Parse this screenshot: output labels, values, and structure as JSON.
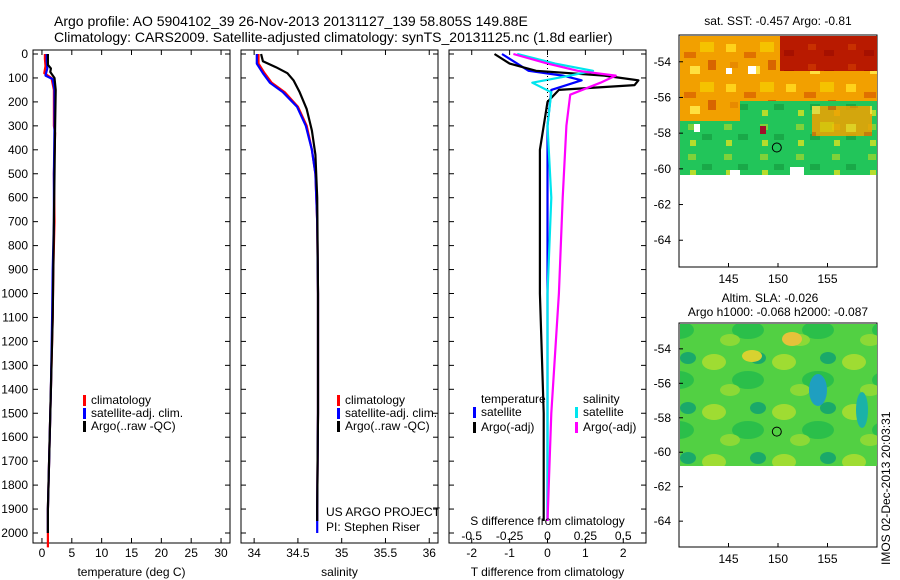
{
  "header": {
    "line1": "Argo profile: AO 5904102_39 26-Nov-2013 20131127_139 58.805S 149.88E",
    "line2": "Climatology: CARS2009. Satellite-adjusted climatology: synTS_20131125.nc (1.8d earlier)"
  },
  "footer_stamp": "IMOS 02-Dec-2013 20:03:31",
  "colors": {
    "climatology": "#ff0000",
    "satellite": "#0000ff",
    "argo": "#000000",
    "sat_salinity": "#00e5ee",
    "argo_salinity": "#ff00ff"
  },
  "chart_data": [
    {
      "type": "line",
      "xlabel": "temperature (deg C)",
      "xticks": [
        "0",
        "5",
        "10",
        "15",
        "20",
        "25",
        "30"
      ],
      "xlim": [
        -1.5,
        31.5
      ],
      "ylim": [
        0,
        2060
      ],
      "yticks": [
        "0",
        "100",
        "200",
        "300",
        "400",
        "500",
        "600",
        "700",
        "800",
        "900",
        "1000",
        "1100",
        "1200",
        "1300",
        "1400",
        "1500",
        "1600",
        "1700",
        "1800",
        "1900",
        "2000"
      ],
      "legend": [
        "climatology",
        "satellite-adj. clim.",
        "Argo(..raw -QC)"
      ],
      "series": [
        {
          "name": "climatology",
          "color": "#ff0000",
          "points": [
            [
              0.5,
              0
            ],
            [
              0.5,
              20
            ],
            [
              0.6,
              50
            ],
            [
              0.4,
              80
            ],
            [
              1.6,
              100
            ],
            [
              2.0,
              150
            ],
            [
              2.0,
              300
            ],
            [
              2.2,
              330
            ],
            [
              2.0,
              500
            ],
            [
              2.1,
              700
            ],
            [
              1.9,
              900
            ],
            [
              1.8,
              1100
            ],
            [
              1.5,
              1400
            ],
            [
              1.2,
              1700
            ],
            [
              1.0,
              1900
            ],
            [
              1.0,
              2000
            ],
            [
              1.0,
              2060
            ]
          ]
        },
        {
          "name": "satellite-adj. clim.",
          "color": "#0000ff",
          "points": [
            [
              0.8,
              0
            ],
            [
              0.8,
              30
            ],
            [
              0.9,
              60
            ],
            [
              0.6,
              90
            ],
            [
              1.8,
              105
            ],
            [
              2.1,
              150
            ],
            [
              2.1,
              300
            ],
            [
              2.0,
              500
            ],
            [
              2.0,
              700
            ],
            [
              1.8,
              900
            ],
            [
              1.7,
              1100
            ],
            [
              1.5,
              1400
            ],
            [
              1.2,
              1700
            ],
            [
              1.0,
              1900
            ],
            [
              1.0,
              2000
            ]
          ]
        },
        {
          "name": "Argo(..raw -QC)",
          "color": "#000000",
          "points": [
            [
              1.0,
              0
            ],
            [
              1.0,
              20
            ],
            [
              1.0,
              45
            ],
            [
              1.5,
              60
            ],
            [
              1.4,
              75
            ],
            [
              2.1,
              100
            ],
            [
              2.3,
              150
            ],
            [
              2.2,
              300
            ],
            [
              2.1,
              500
            ],
            [
              2.0,
              700
            ],
            [
              1.9,
              900
            ],
            [
              1.8,
              1100
            ],
            [
              1.5,
              1400
            ],
            [
              1.2,
              1700
            ],
            [
              1.0,
              1900
            ],
            [
              1.0,
              2000
            ]
          ]
        }
      ]
    },
    {
      "type": "line",
      "xlabel": "salinity",
      "xticks": [
        "34",
        "34.5",
        "35",
        "35.5",
        "36"
      ],
      "xlim": [
        33.85,
        36.1
      ],
      "ylim": [
        0,
        2060
      ],
      "legend": [
        "climatology",
        "satellite-adj. clim.",
        "Argo(..raw -QC)"
      ],
      "annotation": [
        "US ARGO PROJECT",
        "PI: Stephen Riser"
      ],
      "series": [
        {
          "name": "climatology",
          "color": "#ff0000",
          "points": [
            [
              34.05,
              0
            ],
            [
              34.05,
              40
            ],
            [
              34.12,
              80
            ],
            [
              34.2,
              120
            ],
            [
              34.35,
              160
            ],
            [
              34.5,
              220
            ],
            [
              34.6,
              300
            ],
            [
              34.66,
              400
            ],
            [
              34.7,
              500
            ],
            [
              34.72,
              700
            ],
            [
              34.73,
              1000
            ],
            [
              34.73,
              1500
            ],
            [
              34.72,
              1900
            ],
            [
              34.72,
              1950
            ]
          ]
        },
        {
          "name": "satellite-adj. clim.",
          "color": "#0000ff",
          "points": [
            [
              34.03,
              0
            ],
            [
              34.03,
              40
            ],
            [
              34.1,
              80
            ],
            [
              34.18,
              120
            ],
            [
              34.33,
              160
            ],
            [
              34.49,
              220
            ],
            [
              34.59,
              300
            ],
            [
              34.66,
              400
            ],
            [
              34.7,
              500
            ],
            [
              34.72,
              700
            ],
            [
              34.73,
              1000
            ],
            [
              34.73,
              1500
            ],
            [
              34.72,
              1900
            ],
            [
              34.72,
              2000
            ]
          ]
        },
        {
          "name": "Argo(..raw -QC)",
          "color": "#000000",
          "points": [
            [
              34.08,
              0
            ],
            [
              34.1,
              30
            ],
            [
              34.25,
              55
            ],
            [
              34.38,
              80
            ],
            [
              34.45,
              110
            ],
            [
              34.52,
              160
            ],
            [
              34.6,
              230
            ],
            [
              34.66,
              320
            ],
            [
              34.7,
              420
            ],
            [
              34.72,
              600
            ],
            [
              34.73,
              1000
            ],
            [
              34.73,
              1500
            ],
            [
              34.72,
              1900
            ],
            [
              34.72,
              1950
            ]
          ]
        }
      ]
    },
    {
      "type": "line",
      "xlabel": "T difference from climatology",
      "top_label": "S difference from climatology",
      "xticks": [
        "-2",
        "-1",
        "0",
        "1",
        "2"
      ],
      "s_xticks": [
        "-0.5",
        "-0.25",
        "0",
        "0.25",
        "0.5"
      ],
      "xlim": [
        -2.6,
        2.6
      ],
      "ylim": [
        0,
        2060
      ],
      "legend_headers": [
        "temperature",
        "salinity"
      ],
      "legend": [
        "satellite",
        "Argo(-adj)",
        "satellite",
        "Argo(-adj)"
      ],
      "series": [
        {
          "name": "satellite",
          "group": "temperature",
          "color": "#0000ff",
          "points": [
            [
              -1.2,
              0
            ],
            [
              -0.8,
              40
            ],
            [
              -0.5,
              70
            ],
            [
              0.4,
              90
            ],
            [
              0.9,
              110
            ],
            [
              0.1,
              150
            ],
            [
              0.0,
              300
            ],
            [
              0.0,
              1000
            ],
            [
              0.0,
              1950
            ]
          ]
        },
        {
          "name": "Argo(-adj)",
          "group": "temperature",
          "color": "#000000",
          "points": [
            [
              -1.4,
              0
            ],
            [
              -1.0,
              40
            ],
            [
              -0.3,
              70
            ],
            [
              1.5,
              90
            ],
            [
              2.4,
              110
            ],
            [
              2.3,
              130
            ],
            [
              0.3,
              150
            ],
            [
              0.0,
              200
            ],
            [
              -0.2,
              400
            ],
            [
              -0.2,
              1000
            ],
            [
              -0.1,
              1500
            ],
            [
              -0.1,
              1950
            ]
          ]
        },
        {
          "name": "satellite",
          "group": "salinity",
          "color": "#00e5ee",
          "points": [
            [
              -0.8,
              0
            ],
            [
              0.2,
              40
            ],
            [
              1.2,
              70
            ],
            [
              0.6,
              90
            ],
            [
              -0.4,
              120
            ],
            [
              0.1,
              160
            ],
            [
              0.0,
              300
            ],
            [
              0.1,
              600
            ],
            [
              0.0,
              1000
            ],
            [
              0.0,
              1950
            ]
          ]
        },
        {
          "name": "Argo(-adj)",
          "group": "salinity",
          "color": "#ff00ff",
          "points": [
            [
              -0.9,
              0
            ],
            [
              0.0,
              40
            ],
            [
              0.8,
              70
            ],
            [
              1.8,
              90
            ],
            [
              1.4,
              120
            ],
            [
              0.6,
              170
            ],
            [
              0.5,
              300
            ],
            [
              0.4,
              600
            ],
            [
              0.3,
              1000
            ],
            [
              0.1,
              1500
            ],
            [
              0.0,
              1950
            ]
          ]
        }
      ]
    },
    {
      "type": "heatmap",
      "title": "sat. SST: -0.457  Argo: -0.81",
      "xticks": [
        "145",
        "150",
        "155"
      ],
      "yticks": [
        "-54",
        "-56",
        "-58",
        "-60",
        "-62",
        "-64"
      ],
      "xlim": [
        140,
        160
      ],
      "ylim": [
        -65.5,
        -52.5
      ],
      "data_ylim": [
        -60,
        -52.5
      ],
      "marker": [
        149.88,
        -58.805
      ]
    },
    {
      "type": "heatmap",
      "title": "Altim. SLA: -0.026",
      "subtitle": "Argo h1000: -0.068  h2000: -0.087",
      "xticks": [
        "145",
        "150",
        "155"
      ],
      "yticks": [
        "-54",
        "-56",
        "-58",
        "-60",
        "-62",
        "-64"
      ],
      "xlim": [
        140,
        160
      ],
      "ylim": [
        -65.5,
        -52.5
      ],
      "data_ylim": [
        -60,
        -52.5
      ],
      "marker": [
        149.88,
        -58.805
      ]
    }
  ]
}
